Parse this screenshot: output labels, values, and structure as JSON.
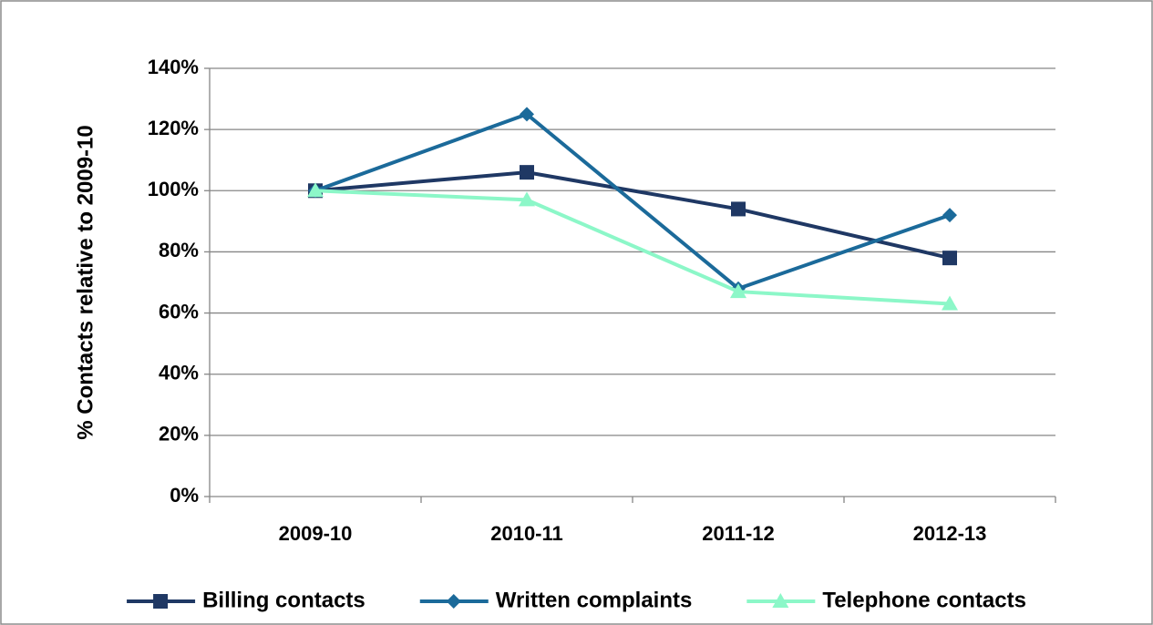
{
  "chart_data": {
    "type": "line",
    "y_label": "% Contacts relative to 2009-10",
    "categories": [
      "2009-10",
      "2010-11",
      "2011-12",
      "2012-13"
    ],
    "series": [
      {
        "name": "Billing contacts",
        "color": "#1f3864",
        "marker": "square",
        "values": [
          100,
          106,
          94,
          78
        ]
      },
      {
        "name": "Written complaints",
        "color": "#1b6a9a",
        "marker": "diamond",
        "values": [
          100,
          125,
          68,
          92
        ]
      },
      {
        "name": "Telephone contacts",
        "color": "#8cf7c8",
        "marker": "triangle",
        "values": [
          100,
          97,
          67,
          63
        ]
      }
    ],
    "ylim": [
      0,
      140
    ],
    "yticks": [
      {
        "value": 0,
        "label": "0%"
      },
      {
        "value": 20,
        "label": "20%"
      },
      {
        "value": 40,
        "label": "40%"
      },
      {
        "value": 60,
        "label": "60%"
      },
      {
        "value": 80,
        "label": "80%"
      },
      {
        "value": 100,
        "label": "100%"
      },
      {
        "value": 120,
        "label": "120%"
      },
      {
        "value": 140,
        "label": "140%"
      }
    ],
    "grid": true,
    "legend": "bottom"
  }
}
